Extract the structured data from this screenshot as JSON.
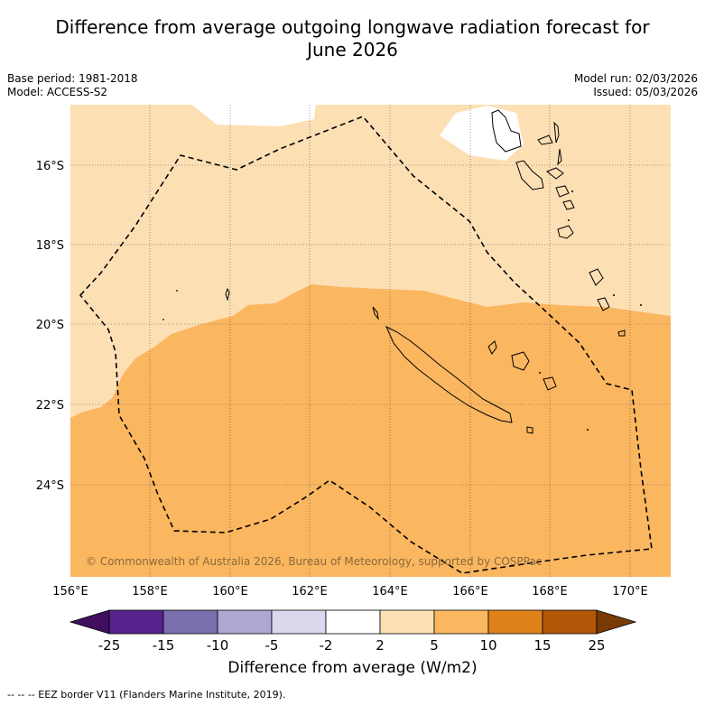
{
  "title_line1": "Difference from average outgoing longwave radiation forecast for",
  "title_line2": "June 2026",
  "base_period": "Base period: 1981-2018",
  "model": "Model: ACCESS-S2",
  "model_run": "Model run: 02/03/2026",
  "issued": "Issued: 05/03/2026",
  "lat_labels": [
    "16°S",
    "18°S",
    "20°S",
    "22°S",
    "24°S"
  ],
  "lon_labels": [
    "156°E",
    "158°E",
    "160°E",
    "162°E",
    "164°E",
    "166°E",
    "168°E",
    "170°E"
  ],
  "copyright": "© Commonwealth of Australia 2026, Bureau of Meteorology, supported by COSPPac",
  "colorbar": {
    "title": "Difference from average (W/m2)",
    "ticks": [
      "-25",
      "-15",
      "-10",
      "-5",
      "-2",
      "2",
      "5",
      "10",
      "15",
      "25"
    ],
    "colors": [
      "#3f0f5e",
      "#58228c",
      "#7b6fae",
      "#aea7d2",
      "#d9d8ec",
      "#ffffff",
      "#fddfb4",
      "#fbb660",
      "#e0821a",
      "#b25708",
      "#7a3a06"
    ]
  },
  "footer": "--  --  -- EEZ border V11 (Flanders Marine Institute, 2019).",
  "colors": {
    "light_orange": "#fddfb4",
    "orange": "#fbb660",
    "white": "#ffffff"
  }
}
